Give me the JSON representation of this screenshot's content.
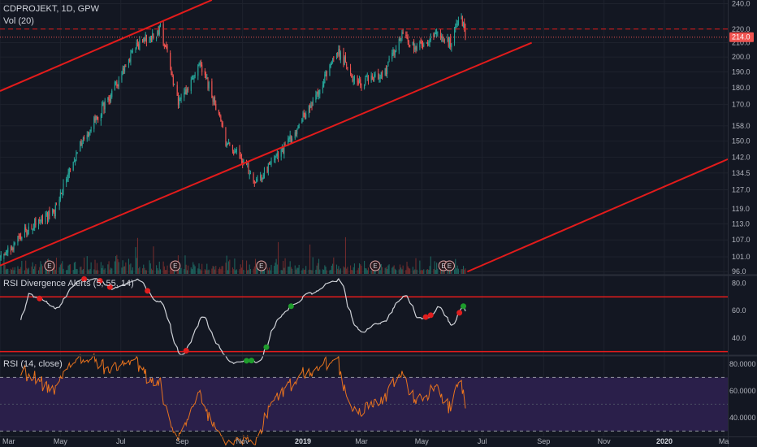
{
  "header": {
    "symbol": "CDPROJEKT, 1D, GPW",
    "volume_label": "Vol (20)",
    "rsi_div_label": "RSI Divergence Alerts (5, 55, 14)",
    "rsi_label": "RSI (14, close)"
  },
  "colors": {
    "background": "#131722",
    "grid": "#1e222d",
    "up": "#26a69a",
    "down": "#ef5350",
    "trendline": "#e21b1b",
    "rsi_line": "#e8731e",
    "rsi_band": "#2a1f4a",
    "alert_line": "#cfd2d8",
    "bull_dot": "#1e9c2c",
    "bear_dot": "#e01e1e"
  },
  "chart_data": [
    {
      "name": "price",
      "type": "candlestick",
      "y_ticks": [
        96.0,
        101.0,
        107.0,
        113.0,
        119.0,
        127.0,
        134.5,
        142.0,
        150.0,
        158.0,
        170.0,
        180.0,
        190.0,
        200.0,
        210.0,
        220.0,
        240.0
      ],
      "y_scale": "log",
      "ylim": [
        95.0,
        243.0
      ],
      "x_ticks": [
        "Mar",
        "May",
        "Jul",
        "Sep",
        "Nov",
        "2019",
        "Mar",
        "May",
        "Jul",
        "Sep",
        "Nov",
        "2020",
        "Ma"
      ],
      "x_range": [
        "2018-03-01",
        "2020-03-05"
      ],
      "last_price": "214.0",
      "resistance": 220.0,
      "key_points": [
        {
          "date": "2018-03-01",
          "close": 100
        },
        {
          "date": "2018-04-01",
          "close": 112
        },
        {
          "date": "2018-04-25",
          "close": 118
        },
        {
          "date": "2018-05-15",
          "close": 142
        },
        {
          "date": "2018-06-20",
          "close": 175
        },
        {
          "date": "2018-07-20",
          "close": 210
        },
        {
          "date": "2018-08-10",
          "close": 220
        },
        {
          "date": "2018-08-28",
          "close": 170
        },
        {
          "date": "2018-09-20",
          "close": 195
        },
        {
          "date": "2018-10-15",
          "close": 150
        },
        {
          "date": "2018-11-05",
          "close": 138
        },
        {
          "date": "2018-11-15",
          "close": 130
        },
        {
          "date": "2018-12-15",
          "close": 148
        },
        {
          "date": "2019-01-15",
          "close": 175
        },
        {
          "date": "2019-02-05",
          "close": 205
        },
        {
          "date": "2019-02-25",
          "close": 182
        },
        {
          "date": "2019-03-25",
          "close": 190
        },
        {
          "date": "2019-04-10",
          "close": 215
        },
        {
          "date": "2019-04-25",
          "close": 205
        },
        {
          "date": "2019-05-15",
          "close": 215
        },
        {
          "date": "2019-05-30",
          "close": 210
        },
        {
          "date": "2019-06-10",
          "close": 230
        },
        {
          "date": "2019-06-14",
          "close": 214
        }
      ],
      "earnings_dates": [
        "2018-04-20",
        "2018-08-25",
        "2018-11-20",
        "2019-03-15",
        "2019-05-23",
        "2019-05-29"
      ],
      "earnings_label": "E",
      "trendlines": [
        {
          "points": [
            [
              "2018-03-01",
              178
            ],
            [
              "2018-10-01",
              243
            ]
          ]
        },
        {
          "points": [
            [
              "2018-03-01",
              98
            ],
            [
              "2019-08-20",
              210
            ]
          ]
        },
        {
          "points": [
            [
              "2019-06-16",
              96
            ],
            [
              "2020-03-05",
              141
            ]
          ]
        }
      ]
    },
    {
      "name": "rsi_divergence",
      "type": "line",
      "y_ticks": [
        40.0,
        60.0,
        80.0
      ],
      "ylim": [
        28,
        85
      ],
      "levels": [
        70,
        30
      ],
      "bear_alert_dates": [
        "2018-04-10",
        "2018-05-25",
        "2018-06-10",
        "2018-06-20",
        "2018-07-28",
        "2018-09-05",
        "2019-05-05",
        "2019-05-10",
        "2019-06-08"
      ],
      "bull_alert_dates": [
        "2018-11-05",
        "2018-11-10",
        "2018-11-25",
        "2018-12-20",
        "2019-06-12"
      ]
    },
    {
      "name": "rsi",
      "type": "line",
      "y_ticks": [
        40.0,
        60.0,
        80.0
      ],
      "y_tick_labels": [
        "40.0000",
        "60.0000",
        "80.0000"
      ],
      "ylim": [
        26,
        86
      ],
      "levels": [
        70,
        30
      ],
      "band": [
        30,
        70
      ]
    }
  ]
}
